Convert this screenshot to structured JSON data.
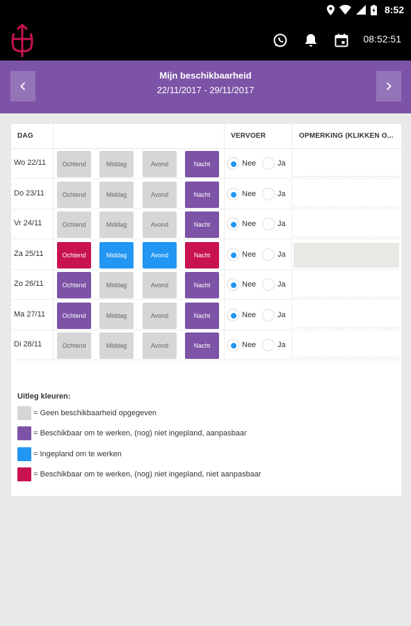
{
  "statusbar": {
    "time": "8:52"
  },
  "appbar": {
    "clock": "08:52:51"
  },
  "week": {
    "title": "Mijn beschikbaarheid",
    "range": "22/11/2017  - 29/11/2017"
  },
  "table": {
    "headers": {
      "day": "DAG",
      "transport": "VERVOER",
      "remark": "OPMERKING (KLIKKEN O..."
    },
    "radio_no": "Nee",
    "radio_yes": "Ja",
    "slot_labels": [
      "Ochtend",
      "Middag",
      "Avond",
      "Nacht"
    ],
    "rows": [
      {
        "day": "Wo 22/11",
        "slots": [
          "grey",
          "grey",
          "grey",
          "purple"
        ],
        "transport": "Nee",
        "remark": ""
      },
      {
        "day": "Do 23/11",
        "slots": [
          "grey",
          "grey",
          "grey",
          "purple"
        ],
        "transport": "Nee",
        "remark": ""
      },
      {
        "day": "Vr 24/11",
        "slots": [
          "grey",
          "grey",
          "grey",
          "purple"
        ],
        "transport": "Nee",
        "remark": ""
      },
      {
        "day": "Za 25/11",
        "slots": [
          "red",
          "blue",
          "blue",
          "red"
        ],
        "transport": "Nee",
        "remark": ""
      },
      {
        "day": "Zo 26/11",
        "slots": [
          "purple",
          "grey",
          "grey",
          "purple"
        ],
        "transport": "Nee",
        "remark": ""
      },
      {
        "day": "Ma 27/11",
        "slots": [
          "purple",
          "grey",
          "grey",
          "purple"
        ],
        "transport": "Nee",
        "remark": ""
      },
      {
        "day": "Di 28/11",
        "slots": [
          "grey",
          "grey",
          "grey",
          "purple"
        ],
        "transport": "Nee",
        "remark": ""
      }
    ]
  },
  "legend": {
    "title": "Uitleg kleuren:",
    "items": [
      {
        "color": "#d6d6d6",
        "text": "= Geen beschikbaarheid opgegeven"
      },
      {
        "color": "#7c53a6",
        "text": "= Beschikbaar om te werken, (nog) niet ingepland, aanpasbaar"
      },
      {
        "color": "#2196f3",
        "text": "= Ingepland om te werken"
      },
      {
        "color": "#c8134f",
        "text": "= Beschikbaar om te werken, (nog) niet ingepland, niet aanpasbaar"
      }
    ]
  },
  "colors": {
    "purple": "#7c53a6",
    "blue": "#2196f3",
    "red": "#c8134f",
    "grey": "#d6d6d6",
    "logo": "#c8134f"
  },
  "icons": [
    "location-icon",
    "wifi-icon",
    "signal-icon",
    "battery-icon",
    "whatsapp-icon",
    "bell-icon",
    "calendar-icon",
    "chevron-left-icon",
    "chevron-right-icon"
  ]
}
